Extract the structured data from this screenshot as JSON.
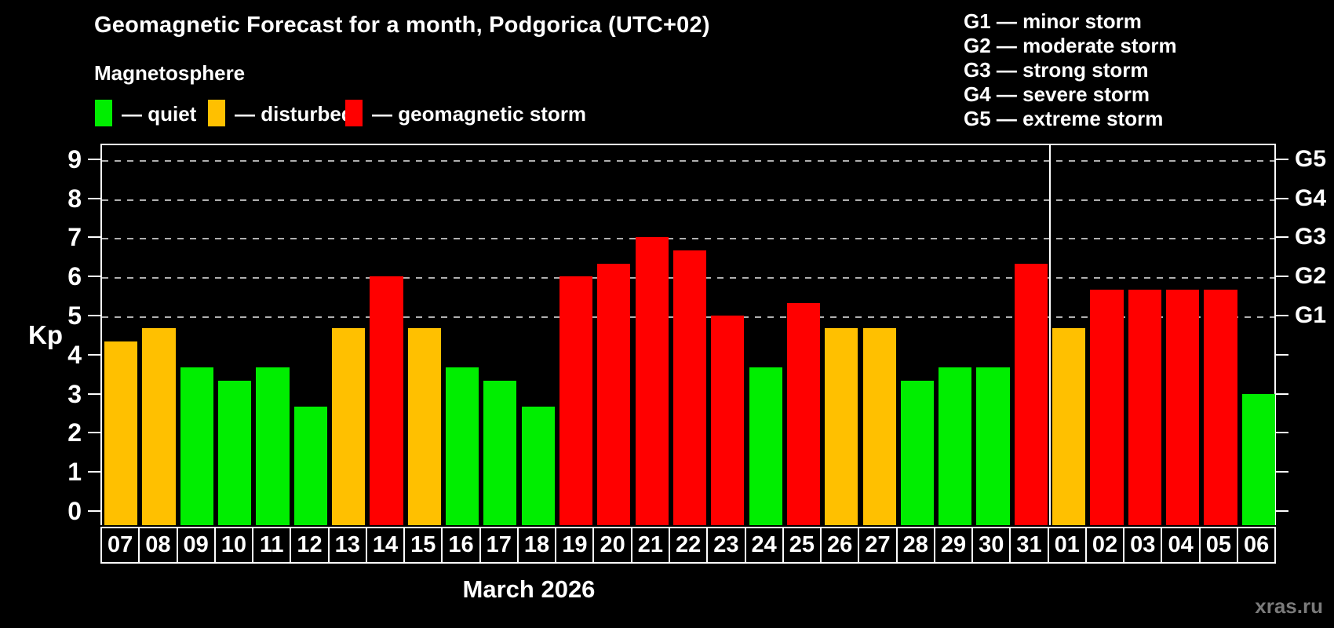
{
  "title": "Geomagnetic Forecast for a month, Podgorica (UTC+02)",
  "subtitle": "Magnetosphere",
  "legend": {
    "quiet": "— quiet",
    "disturbed": "— disturbed",
    "storm": "— geomagnetic storm"
  },
  "g_scale_legend": [
    "G1 — minor storm",
    "G2 — moderate storm",
    "G3 — strong storm",
    "G4 — severe storm",
    "G5 — extreme storm"
  ],
  "footer": {
    "x_caption": "March 2026",
    "watermark": "xras.ru"
  },
  "colors": {
    "quiet": "#00ee00",
    "disturbed": "#ffc000",
    "storm": "#ff0000",
    "background": "#000000",
    "axis": "#ffffff",
    "grid": "#b0b0b0",
    "watermark": "#7a7a7a"
  },
  "chart_data": {
    "type": "bar",
    "title": "Geomagnetic Forecast for a month, Podgorica (UTC+02)",
    "xlabel": "March 2026",
    "ylabel": "Kp",
    "ylim": [
      0,
      9
    ],
    "y_ticks": [
      0,
      1,
      2,
      3,
      4,
      5,
      6,
      7,
      8,
      9
    ],
    "grid_levels": [
      5,
      6,
      7,
      8,
      9
    ],
    "right_axis": {
      "labels": [
        "G1",
        "G2",
        "G3",
        "G4",
        "G5"
      ],
      "at_kp": [
        5,
        6,
        7,
        8,
        9
      ]
    },
    "legend_position": "top",
    "grid": "dashed, G-levels only",
    "month_separator_after_index": 24,
    "days": [
      {
        "label": "07",
        "kp": 4.33,
        "status": "disturbed"
      },
      {
        "label": "08",
        "kp": 4.67,
        "status": "disturbed"
      },
      {
        "label": "09",
        "kp": 3.67,
        "status": "quiet"
      },
      {
        "label": "10",
        "kp": 3.33,
        "status": "quiet"
      },
      {
        "label": "11",
        "kp": 3.67,
        "status": "quiet"
      },
      {
        "label": "12",
        "kp": 2.67,
        "status": "quiet"
      },
      {
        "label": "13",
        "kp": 4.67,
        "status": "disturbed"
      },
      {
        "label": "14",
        "kp": 6.0,
        "status": "storm"
      },
      {
        "label": "15",
        "kp": 4.67,
        "status": "disturbed"
      },
      {
        "label": "16",
        "kp": 3.67,
        "status": "quiet"
      },
      {
        "label": "17",
        "kp": 3.33,
        "status": "quiet"
      },
      {
        "label": "18",
        "kp": 2.67,
        "status": "quiet"
      },
      {
        "label": "19",
        "kp": 6.0,
        "status": "storm"
      },
      {
        "label": "20",
        "kp": 6.33,
        "status": "storm"
      },
      {
        "label": "21",
        "kp": 7.0,
        "status": "storm"
      },
      {
        "label": "22",
        "kp": 6.67,
        "status": "storm"
      },
      {
        "label": "23",
        "kp": 5.0,
        "status": "storm"
      },
      {
        "label": "24",
        "kp": 3.67,
        "status": "quiet"
      },
      {
        "label": "25",
        "kp": 5.33,
        "status": "storm"
      },
      {
        "label": "26",
        "kp": 4.67,
        "status": "disturbed"
      },
      {
        "label": "27",
        "kp": 4.67,
        "status": "disturbed"
      },
      {
        "label": "28",
        "kp": 3.33,
        "status": "quiet"
      },
      {
        "label": "29",
        "kp": 3.67,
        "status": "quiet"
      },
      {
        "label": "30",
        "kp": 3.67,
        "status": "quiet"
      },
      {
        "label": "31",
        "kp": 6.33,
        "status": "storm"
      },
      {
        "label": "01",
        "kp": 4.67,
        "status": "disturbed"
      },
      {
        "label": "02",
        "kp": 5.67,
        "status": "storm"
      },
      {
        "label": "03",
        "kp": 5.67,
        "status": "storm"
      },
      {
        "label": "04",
        "kp": 5.67,
        "status": "storm"
      },
      {
        "label": "05",
        "kp": 5.67,
        "status": "storm"
      },
      {
        "label": "06",
        "kp": 3.0,
        "status": "quiet"
      }
    ]
  }
}
